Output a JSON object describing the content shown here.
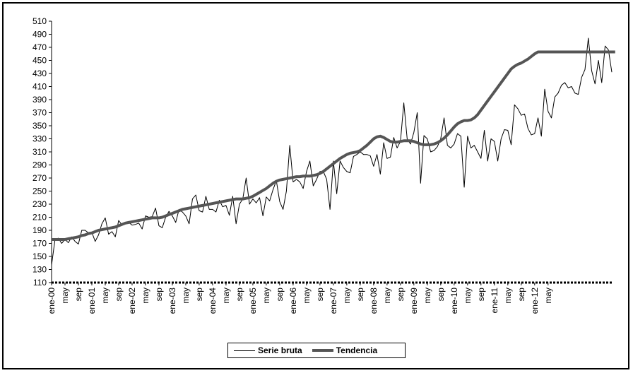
{
  "chart_data": {
    "type": "line",
    "title": "",
    "xlabel": "",
    "ylabel": "",
    "ylim": [
      110,
      510
    ],
    "yticks": [
      110,
      130,
      150,
      170,
      190,
      210,
      230,
      250,
      270,
      290,
      310,
      330,
      350,
      370,
      390,
      410,
      430,
      450,
      470,
      490,
      510
    ],
    "x_tick_labels": [
      "ene-00",
      "may",
      "sep",
      "ene-01",
      "may",
      "sep",
      "ene-02",
      "may",
      "sep",
      "ene-03",
      "may",
      "sep",
      "ene-04",
      "may",
      "sep",
      "ene-05",
      "may",
      "sep",
      "ene-06",
      "may",
      "sep",
      "ene-07",
      "may",
      "sep",
      "ene-08",
      "may",
      "sep",
      "ene-09",
      "may",
      "sep",
      "ene-10",
      "may",
      "sep",
      "ene-11",
      "may",
      "sep",
      "ene-12",
      "may"
    ],
    "legend": "bottom-center",
    "grid": false,
    "series": [
      {
        "name": "Serie bruta",
        "color": "#000000",
        "values": [
          137,
          175,
          178,
          170,
          176,
          171,
          180,
          173,
          169,
          190,
          190,
          186,
          187,
          173,
          183,
          200,
          209,
          184,
          188,
          180,
          205,
          198,
          200,
          202,
          198,
          199,
          201,
          192,
          212,
          210,
          211,
          224,
          197,
          194,
          210,
          219,
          212,
          202,
          222,
          218,
          212,
          200,
          238,
          244,
          220,
          218,
          242,
          222,
          222,
          218,
          236,
          226,
          228,
          213,
          242,
          200,
          230,
          238,
          270,
          230,
          238,
          232,
          240,
          212,
          241,
          235,
          252,
          266,
          234,
          222,
          250,
          320,
          264,
          268,
          264,
          254,
          280,
          296,
          258,
          268,
          280,
          280,
          268,
          222,
          296,
          246,
          296,
          286,
          280,
          278,
          303,
          306,
          310,
          306,
          306,
          304,
          288,
          306,
          276,
          324,
          300,
          302,
          332,
          316,
          326,
          385,
          330,
          322,
          340,
          370,
          262,
          335,
          330,
          310,
          312,
          318,
          330,
          362,
          320,
          316,
          322,
          338,
          334,
          256,
          334,
          316,
          320,
          310,
          300,
          343,
          296,
          330,
          326,
          296,
          330,
          344,
          343,
          321,
          382,
          376,
          366,
          368,
          346,
          336,
          338,
          362,
          334,
          406,
          372,
          362,
          394,
          400,
          412,
          416,
          408,
          410,
          400,
          398,
          424,
          436,
          484,
          434,
          414,
          450,
          416,
          472,
          466,
          432
        ]
      },
      {
        "name": "Tendencia",
        "color": "#555555",
        "values": [
          176,
          176,
          176,
          176,
          176,
          177,
          178,
          179,
          180,
          182,
          183,
          185,
          186,
          188,
          190,
          191,
          192,
          193,
          194,
          195,
          197,
          199,
          201,
          202,
          203,
          204,
          205,
          206,
          207,
          208,
          209,
          209,
          209,
          210,
          212,
          214,
          216,
          218,
          220,
          222,
          223,
          224,
          225,
          226,
          227,
          228,
          229,
          230,
          231,
          232,
          233,
          234,
          235,
          236,
          237,
          238,
          238,
          238,
          239,
          240,
          242,
          245,
          248,
          251,
          254,
          258,
          262,
          265,
          267,
          268,
          269,
          270,
          271,
          272,
          272,
          273,
          273,
          273,
          274,
          275,
          277,
          280,
          284,
          288,
          292,
          296,
          300,
          303,
          306,
          308,
          309,
          310,
          312,
          316,
          320,
          325,
          330,
          333,
          334,
          332,
          329,
          326,
          325,
          325,
          326,
          327,
          327,
          327,
          326,
          324,
          322,
          321,
          321,
          321,
          322,
          324,
          327,
          331,
          336,
          342,
          348,
          353,
          356,
          358,
          358,
          359,
          362,
          367,
          374,
          381,
          388,
          395,
          402,
          409,
          416,
          423,
          430,
          437,
          441,
          444,
          446,
          449,
          452,
          456,
          460,
          463,
          463,
          463,
          463,
          463,
          463,
          463,
          463,
          463,
          463,
          463,
          463,
          463,
          463,
          463,
          463,
          463,
          463,
          463,
          463,
          463,
          463,
          463,
          463
        ]
      }
    ]
  }
}
